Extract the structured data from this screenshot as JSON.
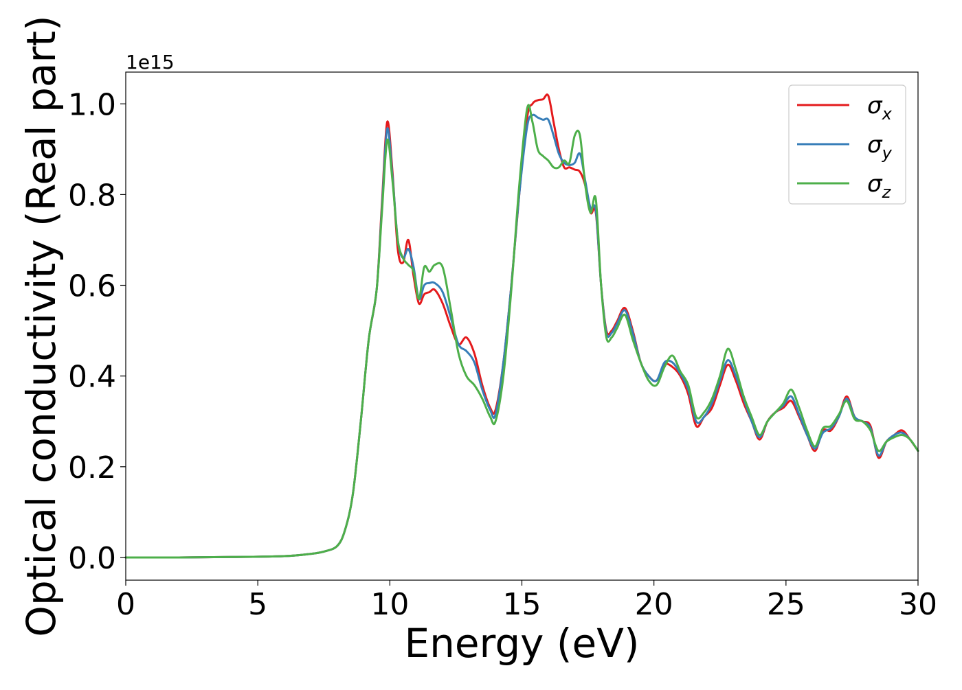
{
  "chart_data": {
    "type": "line",
    "xlabel": "Energy (eV)",
    "ylabel": "Optical conductivity (Real part)",
    "y_offset_label": "1e15",
    "xlim": [
      0,
      30
    ],
    "ylim": [
      -0.05,
      1.07
    ],
    "x_ticks": [
      0,
      5,
      10,
      15,
      20,
      25,
      30
    ],
    "x_tick_labels": [
      "0",
      "5",
      "10",
      "15",
      "20",
      "25",
      "30"
    ],
    "y_ticks": [
      0.0,
      0.2,
      0.4,
      0.6,
      0.8,
      1.0
    ],
    "y_tick_labels": [
      "0.0",
      "0.2",
      "0.4",
      "0.6",
      "0.8",
      "1.0"
    ],
    "grid": false,
    "legend_position": "top-right",
    "series": [
      {
        "name": "σx",
        "legend_base": "σ",
        "legend_sub": "x",
        "color": "#e41a1c",
        "x": [
          0,
          2,
          4,
          6,
          7,
          7.5,
          8,
          8.3,
          8.6,
          8.9,
          9.2,
          9.5,
          9.7,
          9.9,
          10.1,
          10.3,
          10.5,
          10.7,
          10.9,
          11.1,
          11.3,
          11.5,
          11.7,
          12.0,
          12.3,
          12.6,
          12.9,
          13.2,
          13.5,
          13.8,
          14.0,
          14.3,
          14.6,
          14.9,
          15.2,
          15.4,
          15.6,
          15.8,
          16.0,
          16.2,
          16.4,
          16.6,
          16.8,
          17.0,
          17.2,
          17.4,
          17.6,
          17.8,
          18.0,
          18.2,
          18.4,
          18.6,
          18.9,
          19.2,
          19.5,
          19.8,
          20.1,
          20.4,
          20.7,
          21.0,
          21.3,
          21.6,
          21.9,
          22.2,
          22.5,
          22.8,
          23.1,
          23.4,
          23.7,
          24.0,
          24.3,
          24.6,
          24.9,
          25.2,
          25.5,
          25.8,
          26.1,
          26.4,
          26.7,
          27.0,
          27.3,
          27.6,
          27.9,
          28.2,
          28.5,
          28.8,
          29.1,
          29.4,
          29.7,
          30.0
        ],
        "y": [
          0.0,
          0.0,
          0.001,
          0.003,
          0.008,
          0.013,
          0.025,
          0.06,
          0.14,
          0.3,
          0.48,
          0.59,
          0.78,
          0.96,
          0.85,
          0.68,
          0.65,
          0.7,
          0.62,
          0.56,
          0.58,
          0.585,
          0.59,
          0.56,
          0.51,
          0.47,
          0.485,
          0.45,
          0.38,
          0.33,
          0.325,
          0.43,
          0.6,
          0.8,
          0.97,
          1.0,
          1.008,
          1.01,
          1.018,
          0.96,
          0.9,
          0.86,
          0.86,
          0.855,
          0.85,
          0.82,
          0.76,
          0.76,
          0.6,
          0.5,
          0.5,
          0.52,
          0.55,
          0.5,
          0.43,
          0.4,
          0.39,
          0.425,
          0.42,
          0.4,
          0.36,
          0.29,
          0.31,
          0.33,
          0.38,
          0.425,
          0.39,
          0.34,
          0.3,
          0.26,
          0.3,
          0.32,
          0.33,
          0.345,
          0.31,
          0.27,
          0.235,
          0.28,
          0.28,
          0.31,
          0.355,
          0.31,
          0.3,
          0.29,
          0.22,
          0.255,
          0.27,
          0.28,
          0.26,
          0.235
        ]
      },
      {
        "name": "σy",
        "legend_base": "σ",
        "legend_sub": "y",
        "color": "#377eb8",
        "x": [
          0,
          2,
          4,
          6,
          7,
          7.5,
          8,
          8.3,
          8.6,
          8.9,
          9.2,
          9.5,
          9.7,
          9.9,
          10.1,
          10.3,
          10.5,
          10.7,
          10.9,
          11.1,
          11.3,
          11.5,
          11.7,
          12.0,
          12.3,
          12.6,
          12.9,
          13.2,
          13.5,
          13.8,
          14.0,
          14.3,
          14.6,
          14.9,
          15.2,
          15.4,
          15.6,
          15.8,
          16.0,
          16.2,
          16.4,
          16.6,
          16.8,
          17.0,
          17.2,
          17.4,
          17.6,
          17.8,
          18.0,
          18.2,
          18.4,
          18.6,
          18.9,
          19.2,
          19.5,
          19.8,
          20.1,
          20.4,
          20.7,
          21.0,
          21.3,
          21.6,
          21.9,
          22.2,
          22.5,
          22.8,
          23.1,
          23.4,
          23.7,
          24.0,
          24.3,
          24.6,
          24.9,
          25.2,
          25.5,
          25.8,
          26.1,
          26.4,
          26.7,
          27.0,
          27.3,
          27.6,
          27.9,
          28.2,
          28.5,
          28.8,
          29.1,
          29.4,
          29.7,
          30.0
        ],
        "y": [
          0.0,
          0.0,
          0.001,
          0.003,
          0.008,
          0.013,
          0.025,
          0.06,
          0.14,
          0.3,
          0.48,
          0.59,
          0.77,
          0.945,
          0.84,
          0.7,
          0.66,
          0.68,
          0.64,
          0.57,
          0.6,
          0.605,
          0.605,
          0.585,
          0.53,
          0.47,
          0.455,
          0.43,
          0.37,
          0.325,
          0.315,
          0.43,
          0.6,
          0.8,
          0.95,
          0.975,
          0.97,
          0.965,
          0.965,
          0.93,
          0.89,
          0.87,
          0.865,
          0.87,
          0.89,
          0.83,
          0.77,
          0.765,
          0.6,
          0.495,
          0.495,
          0.515,
          0.545,
          0.495,
          0.43,
          0.4,
          0.39,
          0.43,
          0.43,
          0.405,
          0.37,
          0.3,
          0.31,
          0.34,
          0.39,
          0.435,
          0.4,
          0.35,
          0.3,
          0.265,
          0.3,
          0.32,
          0.335,
          0.355,
          0.315,
          0.27,
          0.24,
          0.275,
          0.285,
          0.31,
          0.35,
          0.31,
          0.3,
          0.285,
          0.225,
          0.255,
          0.27,
          0.275,
          0.26,
          0.235
        ]
      },
      {
        "name": "σz",
        "legend_base": "σ",
        "legend_sub": "z",
        "color": "#4daf4a",
        "x": [
          0,
          2,
          4,
          6,
          7,
          7.5,
          8,
          8.3,
          8.6,
          8.9,
          9.2,
          9.5,
          9.7,
          9.9,
          10.1,
          10.3,
          10.5,
          10.7,
          10.9,
          11.1,
          11.3,
          11.5,
          11.7,
          12.0,
          12.3,
          12.6,
          12.9,
          13.2,
          13.5,
          13.8,
          14.0,
          14.3,
          14.6,
          14.9,
          15.2,
          15.4,
          15.6,
          15.8,
          16.0,
          16.2,
          16.4,
          16.6,
          16.8,
          17.0,
          17.2,
          17.4,
          17.6,
          17.8,
          18.0,
          18.2,
          18.4,
          18.6,
          18.9,
          19.2,
          19.5,
          19.8,
          20.1,
          20.4,
          20.7,
          21.0,
          21.3,
          21.6,
          21.9,
          22.2,
          22.5,
          22.8,
          23.1,
          23.4,
          23.7,
          24.0,
          24.3,
          24.6,
          24.9,
          25.2,
          25.5,
          25.8,
          26.1,
          26.4,
          26.7,
          27.0,
          27.3,
          27.6,
          27.9,
          28.2,
          28.5,
          28.8,
          29.1,
          29.4,
          29.7,
          30.0
        ],
        "y": [
          0.0,
          0.0,
          0.001,
          0.003,
          0.008,
          0.013,
          0.025,
          0.06,
          0.14,
          0.3,
          0.48,
          0.59,
          0.76,
          0.92,
          0.83,
          0.7,
          0.66,
          0.645,
          0.63,
          0.57,
          0.64,
          0.63,
          0.645,
          0.64,
          0.55,
          0.45,
          0.4,
          0.38,
          0.35,
          0.31,
          0.3,
          0.4,
          0.59,
          0.82,
          0.99,
          0.96,
          0.9,
          0.885,
          0.875,
          0.86,
          0.86,
          0.875,
          0.87,
          0.93,
          0.93,
          0.82,
          0.76,
          0.79,
          0.6,
          0.485,
          0.485,
          0.505,
          0.535,
          0.48,
          0.43,
          0.39,
          0.38,
          0.42,
          0.445,
          0.41,
          0.38,
          0.31,
          0.32,
          0.35,
          0.4,
          0.46,
          0.415,
          0.355,
          0.31,
          0.27,
          0.3,
          0.32,
          0.34,
          0.37,
          0.33,
          0.28,
          0.245,
          0.285,
          0.29,
          0.315,
          0.345,
          0.305,
          0.3,
          0.28,
          0.235,
          0.255,
          0.265,
          0.27,
          0.26,
          0.235
        ]
      }
    ]
  }
}
